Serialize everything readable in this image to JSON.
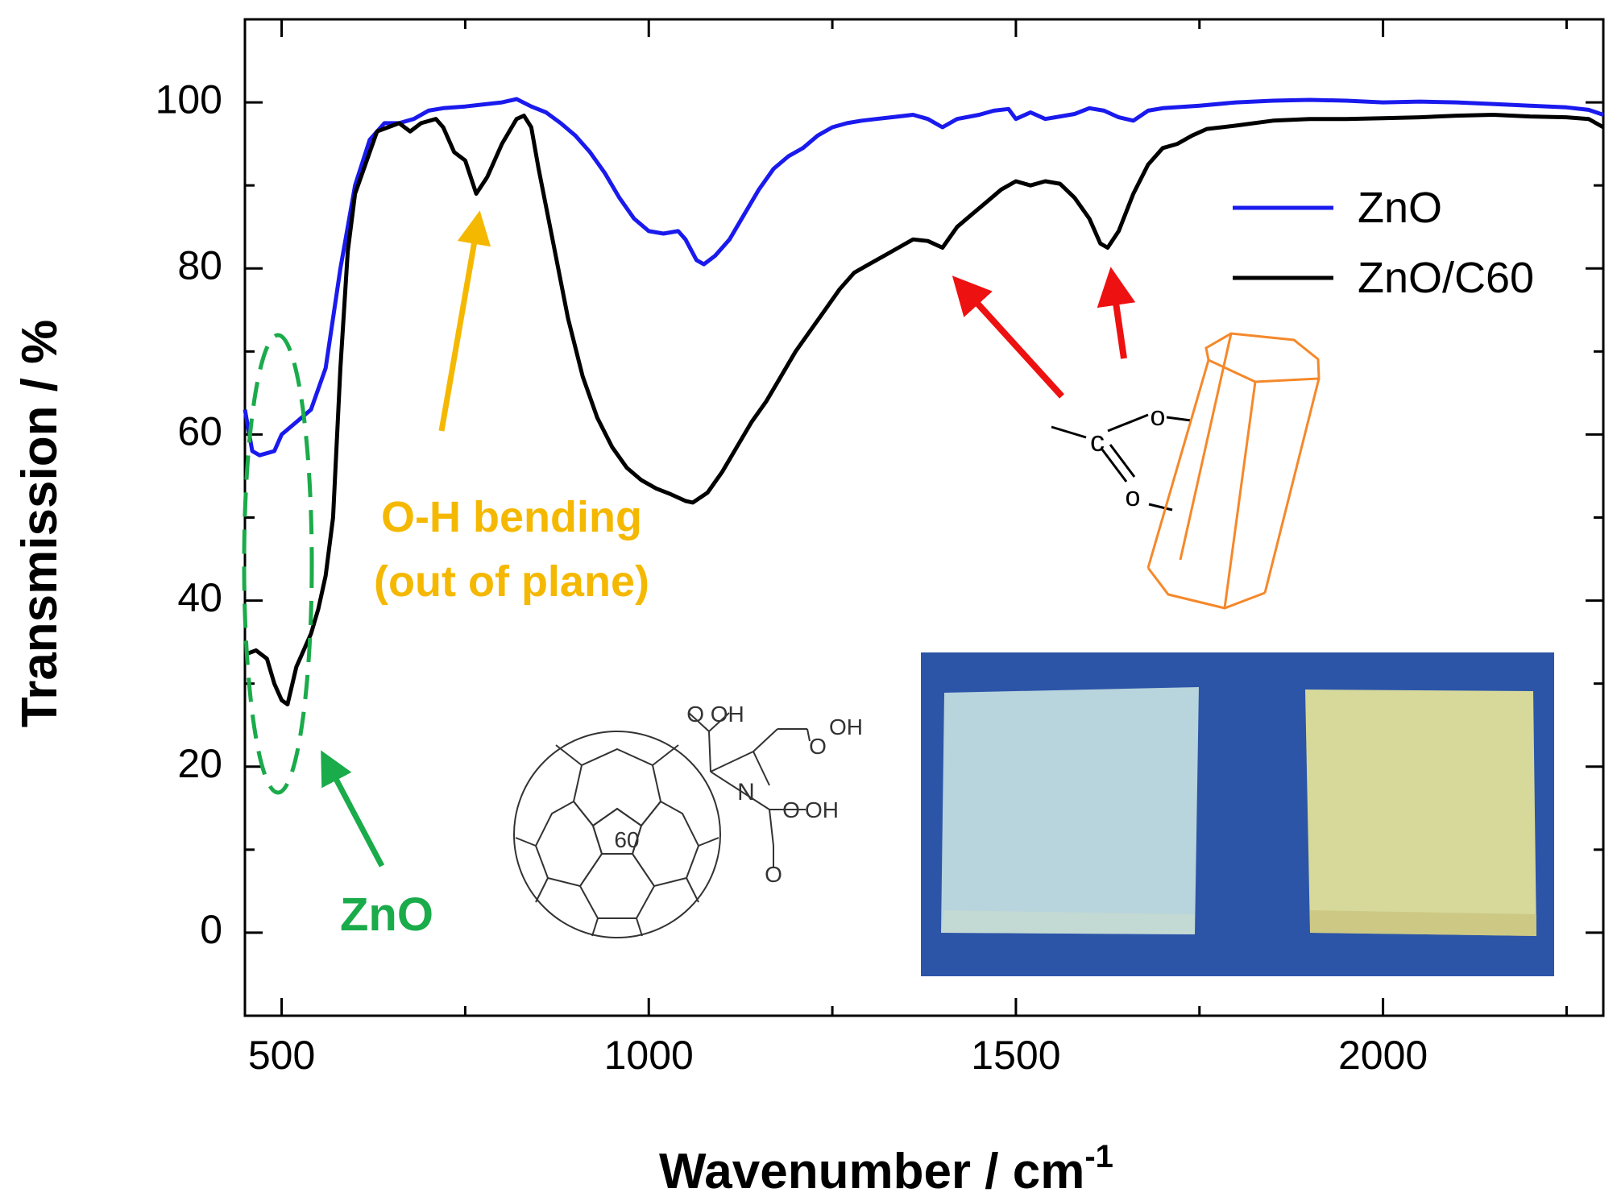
{
  "chart_data": {
    "type": "line",
    "xlabel": "Wavenumber / cm",
    "xlabel_superscript": "-1",
    "ylabel": "Transmission / %",
    "xlim": [
      450,
      2300
    ],
    "ylim": [
      -10,
      110
    ],
    "x_ticks": [
      500,
      1000,
      1500,
      2000
    ],
    "y_ticks": [
      0,
      20,
      40,
      60,
      80,
      100
    ],
    "x_tick_labels": [
      "500",
      "1000",
      "1500",
      "2000"
    ],
    "y_tick_labels": [
      "0",
      "20",
      "40",
      "60",
      "80",
      "100"
    ],
    "legend_position": "top-right",
    "series": [
      {
        "name": "ZnO",
        "color": "#1a1aee",
        "points": [
          [
            450,
            63
          ],
          [
            460,
            58
          ],
          [
            470,
            57.5
          ],
          [
            490,
            58
          ],
          [
            500,
            60
          ],
          [
            520,
            61.5
          ],
          [
            540,
            63
          ],
          [
            560,
            68
          ],
          [
            580,
            80
          ],
          [
            600,
            90
          ],
          [
            620,
            95.5
          ],
          [
            640,
            97.5
          ],
          [
            660,
            97.5
          ],
          [
            680,
            98
          ],
          [
            700,
            99
          ],
          [
            720,
            99.3
          ],
          [
            750,
            99.5
          ],
          [
            780,
            99.8
          ],
          [
            800,
            100
          ],
          [
            820,
            100.4
          ],
          [
            840,
            99.5
          ],
          [
            860,
            98.8
          ],
          [
            880,
            97.5
          ],
          [
            900,
            96
          ],
          [
            920,
            94
          ],
          [
            940,
            91.5
          ],
          [
            960,
            88.5
          ],
          [
            980,
            86
          ],
          [
            1000,
            84.5
          ],
          [
            1020,
            84.2
          ],
          [
            1040,
            84.5
          ],
          [
            1050,
            83.5
          ],
          [
            1065,
            81
          ],
          [
            1075,
            80.5
          ],
          [
            1090,
            81.5
          ],
          [
            1110,
            83.5
          ],
          [
            1130,
            86.5
          ],
          [
            1150,
            89.5
          ],
          [
            1170,
            92
          ],
          [
            1190,
            93.5
          ],
          [
            1210,
            94.5
          ],
          [
            1230,
            96
          ],
          [
            1250,
            97
          ],
          [
            1270,
            97.5
          ],
          [
            1290,
            97.8
          ],
          [
            1310,
            98
          ],
          [
            1340,
            98.3
          ],
          [
            1360,
            98.5
          ],
          [
            1380,
            98
          ],
          [
            1400,
            97
          ],
          [
            1420,
            98
          ],
          [
            1450,
            98.5
          ],
          [
            1470,
            99
          ],
          [
            1490,
            99.2
          ],
          [
            1500,
            98
          ],
          [
            1520,
            98.8
          ],
          [
            1540,
            98
          ],
          [
            1560,
            98.3
          ],
          [
            1580,
            98.6
          ],
          [
            1600,
            99.3
          ],
          [
            1620,
            99
          ],
          [
            1640,
            98.2
          ],
          [
            1660,
            97.8
          ],
          [
            1680,
            99
          ],
          [
            1700,
            99.3
          ],
          [
            1750,
            99.6
          ],
          [
            1800,
            100
          ],
          [
            1850,
            100.2
          ],
          [
            1900,
            100.3
          ],
          [
            1950,
            100.2
          ],
          [
            2000,
            100
          ],
          [
            2050,
            100.1
          ],
          [
            2100,
            100
          ],
          [
            2150,
            99.8
          ],
          [
            2200,
            99.6
          ],
          [
            2250,
            99.4
          ],
          [
            2280,
            99.1
          ],
          [
            2300,
            98.5
          ]
        ]
      },
      {
        "name": "ZnO/C60",
        "color": "#000000",
        "points": [
          [
            450,
            33.5
          ],
          [
            465,
            34
          ],
          [
            480,
            33
          ],
          [
            490,
            30
          ],
          [
            500,
            28
          ],
          [
            508,
            27.5
          ],
          [
            520,
            32
          ],
          [
            540,
            36
          ],
          [
            550,
            39
          ],
          [
            560,
            43
          ],
          [
            570,
            50
          ],
          [
            580,
            68
          ],
          [
            590,
            82
          ],
          [
            600,
            89
          ],
          [
            620,
            94
          ],
          [
            630,
            96.5
          ],
          [
            645,
            97
          ],
          [
            660,
            97.5
          ],
          [
            675,
            96.5
          ],
          [
            690,
            97.5
          ],
          [
            710,
            98
          ],
          [
            720,
            97
          ],
          [
            735,
            94
          ],
          [
            750,
            93
          ],
          [
            765,
            89
          ],
          [
            780,
            91
          ],
          [
            800,
            95
          ],
          [
            820,
            98
          ],
          [
            830,
            98.4
          ],
          [
            840,
            97
          ],
          [
            850,
            92
          ],
          [
            870,
            83
          ],
          [
            890,
            74
          ],
          [
            910,
            67
          ],
          [
            930,
            62
          ],
          [
            950,
            58.5
          ],
          [
            970,
            56
          ],
          [
            990,
            54.5
          ],
          [
            1010,
            53.5
          ],
          [
            1030,
            52.8
          ],
          [
            1050,
            52
          ],
          [
            1060,
            51.8
          ],
          [
            1080,
            53
          ],
          [
            1100,
            55.5
          ],
          [
            1120,
            58.5
          ],
          [
            1140,
            61.5
          ],
          [
            1160,
            64
          ],
          [
            1180,
            67
          ],
          [
            1200,
            70
          ],
          [
            1220,
            72.5
          ],
          [
            1240,
            75
          ],
          [
            1260,
            77.5
          ],
          [
            1280,
            79.5
          ],
          [
            1300,
            80.5
          ],
          [
            1320,
            81.5
          ],
          [
            1340,
            82.5
          ],
          [
            1360,
            83.5
          ],
          [
            1380,
            83.3
          ],
          [
            1400,
            82.5
          ],
          [
            1420,
            85
          ],
          [
            1440,
            86.5
          ],
          [
            1460,
            88
          ],
          [
            1480,
            89.5
          ],
          [
            1500,
            90.5
          ],
          [
            1520,
            90
          ],
          [
            1540,
            90.5
          ],
          [
            1560,
            90.2
          ],
          [
            1580,
            88.5
          ],
          [
            1600,
            86
          ],
          [
            1615,
            83
          ],
          [
            1625,
            82.5
          ],
          [
            1640,
            84.5
          ],
          [
            1660,
            89
          ],
          [
            1680,
            92.5
          ],
          [
            1700,
            94.5
          ],
          [
            1720,
            95
          ],
          [
            1740,
            96
          ],
          [
            1760,
            96.8
          ],
          [
            1800,
            97.2
          ],
          [
            1850,
            97.8
          ],
          [
            1900,
            98
          ],
          [
            1950,
            98
          ],
          [
            2000,
            98.1
          ],
          [
            2050,
            98.2
          ],
          [
            2100,
            98.4
          ],
          [
            2150,
            98.5
          ],
          [
            2200,
            98.3
          ],
          [
            2250,
            98.2
          ],
          [
            2280,
            98
          ],
          [
            2300,
            97
          ]
        ]
      }
    ],
    "annotations": {
      "oh_line1": "O-H bending",
      "oh_line2": "(out of plane)",
      "zno_label": "ZnO",
      "fullerene_label": "60",
      "chem_cooh_1": "O OH",
      "chem_cooh_2": "OH",
      "chem_n": "N",
      "chem_cooh_3": "OH",
      "chem_o_1": "O",
      "chem_o_2": "O",
      "chem_o_3": "O",
      "carboxylate_c": "c",
      "carboxylate_o1": "o",
      "carboxylate_o2": "o"
    },
    "colors": {
      "oh_annotation": "#f5b800",
      "zno_annotation": "#1aab4a",
      "carboxylate_arrow": "#ee1111",
      "crystal": "#f5882a",
      "photo_bg": "#2c55a8",
      "sample_zno": "#b8d4dc",
      "sample_c60": "#d6d99a"
    }
  }
}
